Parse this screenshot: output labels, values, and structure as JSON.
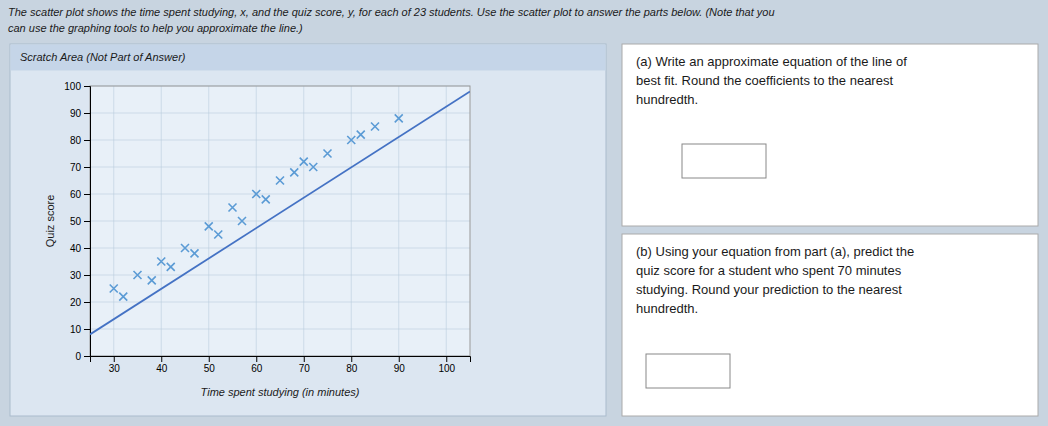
{
  "chart_data": {
    "type": "scatter",
    "title": "The scatter plot shows the time spent studying, x, and the quiz score, y, for each of 23 students. Use the scatter plot to answer the parts below. (Note that you",
    "subtitle": "can use the graphing tools to help you approximate the line.)",
    "xlabel": "Time spent studying (in minutes)",
    "ylabel": "Quiz score",
    "xlim": [
      25,
      105
    ],
    "ylim": [
      0,
      100
    ],
    "xticks": [
      30,
      40,
      50,
      60,
      70,
      80,
      90,
      100
    ],
    "yticks": [
      0,
      10,
      20,
      30,
      40,
      50,
      60,
      70,
      80,
      90,
      100
    ],
    "grid": true,
    "series": [
      {
        "type": "scatter",
        "marker": "x",
        "color": "#5b9bd5",
        "x": [
          30,
          32,
          35,
          38,
          40,
          42,
          45,
          47,
          50,
          52,
          55,
          57,
          60,
          62,
          65,
          68,
          70,
          72,
          75,
          80,
          82,
          85,
          90
        ],
        "values": [
          25,
          22,
          30,
          28,
          35,
          33,
          40,
          38,
          48,
          45,
          55,
          50,
          60,
          58,
          65,
          68,
          72,
          70,
          75,
          80,
          82,
          85,
          88
        ]
      },
      {
        "type": "line",
        "color": "#4472c4",
        "x": [
          25,
          105
        ],
        "values": [
          8,
          98
        ]
      }
    ],
    "annotations": [
      "Scratch Area (Not Part of Answer)",
      "(a) Write an approximate equation of the line of",
      "best fit. Round the coefficients to the nearest",
      "hundredth.",
      "(b) Using your equation from part (a), predict the",
      "quiz score for a student who spent 70 minutes",
      "studying. Round your prediction to the nearest",
      "hundredth."
    ]
  }
}
